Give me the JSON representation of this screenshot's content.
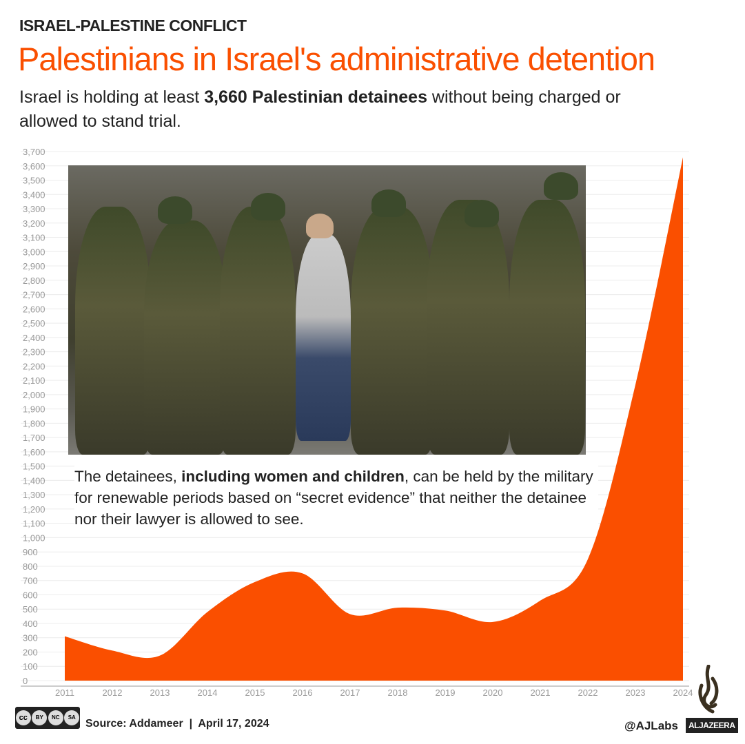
{
  "header": {
    "kicker": "ISRAEL-PALESTINE CONFLICT",
    "title": "Palestinians in Israel's administrative detention",
    "subtitle_pre": "Israel is holding at least ",
    "subtitle_bold": "3,660 Palestinian detainees",
    "subtitle_post": " without being charged or allowed to stand trial."
  },
  "caption": {
    "pre": "The detainees, ",
    "bold": "including women and children",
    "post": ", can be held by the military for renewable periods based on “secret evidence” that neither the detainee nor their lawyer is allowed to see."
  },
  "footer": {
    "source": "Source: Addameer  |  April 17, 2024",
    "license": [
      "BY",
      "NC",
      "SA"
    ],
    "handle": "@AJLabs",
    "brand": "ALJAZEERA"
  },
  "chart_data": {
    "type": "area",
    "title": "",
    "xlabel": "",
    "ylabel": "",
    "x": [
      2011,
      2012,
      2013,
      2014,
      2015,
      2016,
      2017,
      2018,
      2019,
      2020,
      2021,
      2022,
      2023,
      2024
    ],
    "values": [
      310,
      210,
      175,
      480,
      690,
      750,
      465,
      510,
      490,
      410,
      560,
      850,
      2070,
      3660
    ],
    "ylim": [
      0,
      3700
    ],
    "ytick_step": 100,
    "grid": true,
    "color": "#fa4f00",
    "yticks": [
      "0",
      "100",
      "200",
      "300",
      "400",
      "500",
      "600",
      "700",
      "800",
      "900",
      "1,000",
      "1,100",
      "1,200",
      "1,300",
      "1,400",
      "1,500",
      "1,600",
      "1,700",
      "1,800",
      "1,900",
      "2,000",
      "2,100",
      "2,200",
      "2,300",
      "2,400",
      "2,500",
      "2,600",
      "2,700",
      "2,800",
      "2,900",
      "3,000",
      "3,100",
      "3,200",
      "3,300",
      "3,400",
      "3,500",
      "3,600",
      "3,700"
    ],
    "xticks": [
      "2011",
      "2012",
      "2013",
      "2014",
      "2015",
      "2016",
      "2017",
      "2018",
      "2019",
      "2020",
      "2021",
      "2022",
      "2023",
      "2024"
    ]
  }
}
